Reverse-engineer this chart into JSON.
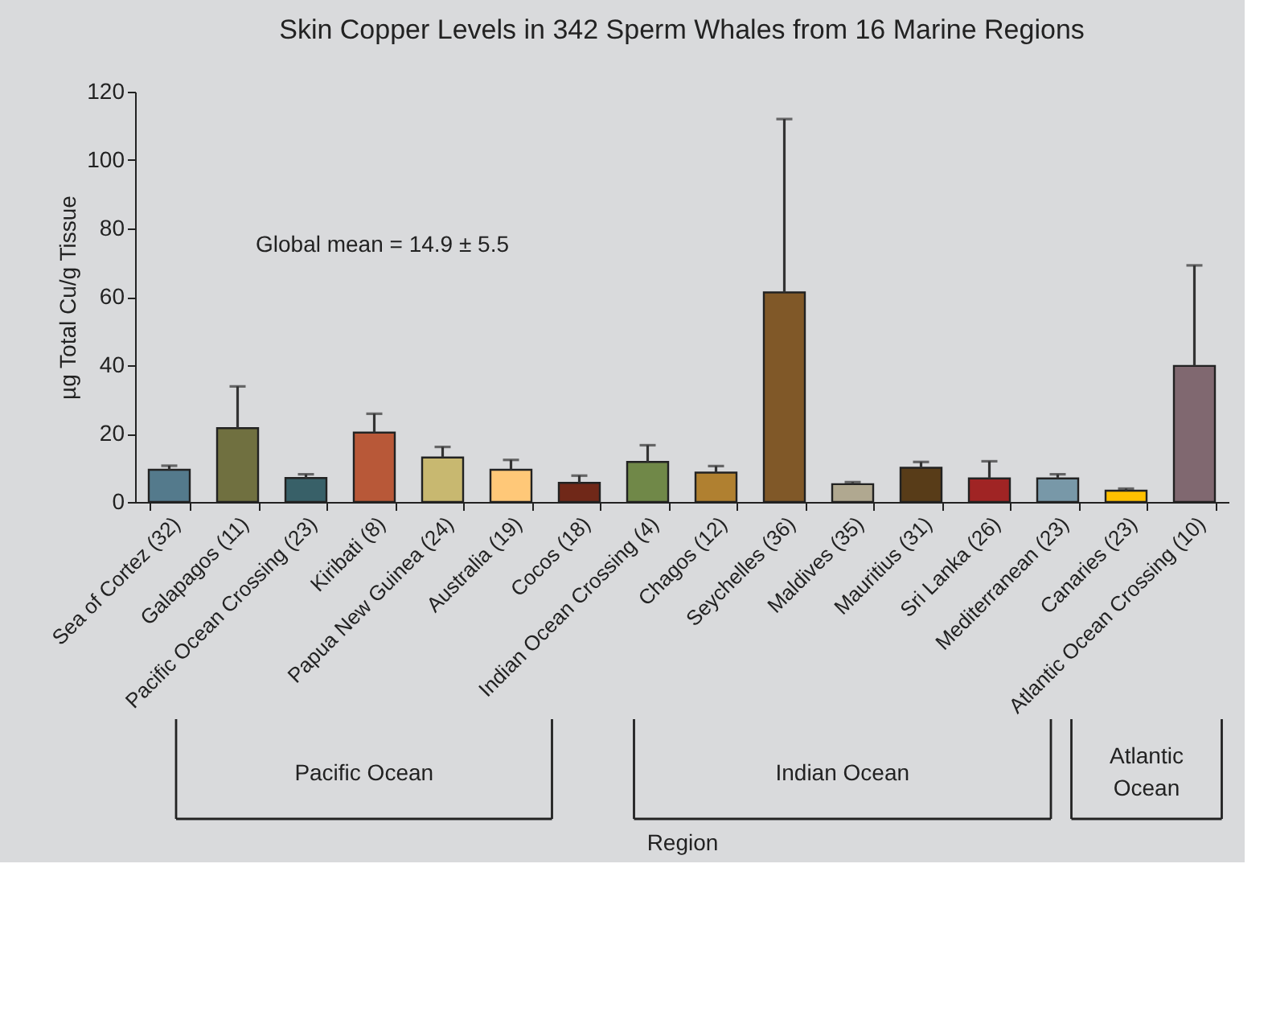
{
  "chart_data": {
    "type": "bar",
    "title": "Skin Copper Levels in 342 Sperm Whales from 16 Marine Regions",
    "xlabel": "Region",
    "ylabel": "µg Total Cu/g Tissue",
    "categories": [
      "Sea of Cortez (32)",
      "Galapagos (11)",
      "Pacific Ocean Crossing (23)",
      "Kiribati (8)",
      "Papua New Guinea (24)",
      "Australia (19)",
      "Cocos (18)",
      "Indian Ocean Crossing (4)",
      "Chagos (12)",
      "Seychelles (36)",
      "Maldives (35)",
      "Mauritius (31)",
      "Sri Lanka (26)",
      "Mediterranean (23)",
      "Canaries (23)",
      "Atlantic Ocean Crossing (10)"
    ],
    "values": [
      9.4,
      21.6,
      7.0,
      20.3,
      13.0,
      9.4,
      5.6,
      11.7,
      8.6,
      61.3,
      5.2,
      10.0,
      6.9,
      6.9,
      3.3,
      39.8
    ],
    "errors": [
      [
        9.4,
        10.6
      ],
      [
        21.6,
        33.8
      ],
      [
        7.0,
        8.1
      ],
      [
        20.3,
        25.8
      ],
      [
        13.0,
        16.1
      ],
      [
        9.4,
        12.3
      ],
      [
        5.6,
        7.7
      ],
      [
        11.7,
        16.6
      ],
      [
        8.6,
        10.5
      ],
      [
        61.3,
        112
      ],
      [
        5.2,
        5.8
      ],
      [
        10.0,
        11.7
      ],
      [
        6.9,
        11.9
      ],
      [
        6.9,
        8.1
      ],
      [
        3.3,
        3.9
      ],
      [
        39.8,
        69.2
      ]
    ],
    "colors": [
      "#547a8c",
      "#707040",
      "#386068",
      "#b85838",
      "#c8b870",
      "#ffc878",
      "#702818",
      "#708848",
      "#b08030",
      "#805828",
      "#b0a890",
      "#583c18",
      "#a02424",
      "#7898a8",
      "#ffc000",
      "#806870"
    ],
    "ylim": [
      0,
      120
    ],
    "yticks": [
      0,
      20,
      40,
      60,
      80,
      100,
      120
    ],
    "annotations": [
      "Global mean = 14.9 ± 5.5",
      "Pacific Ocean",
      "Indian Ocean",
      "Atlantic Ocean"
    ]
  }
}
